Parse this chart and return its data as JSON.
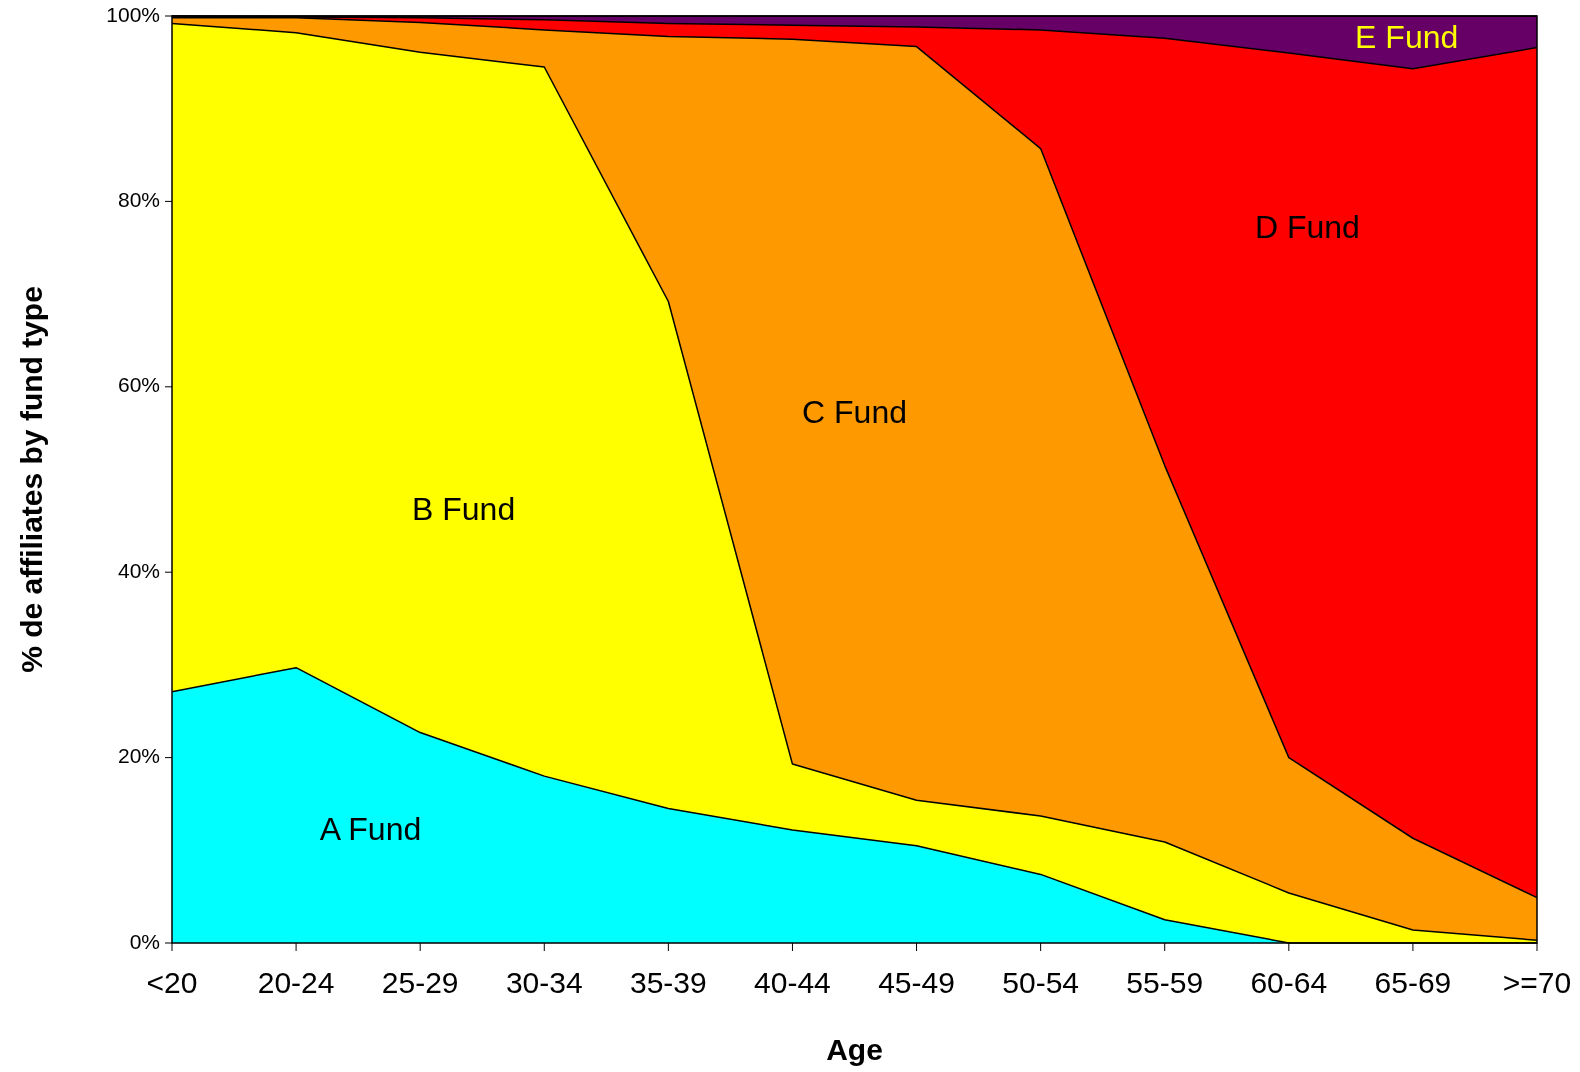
{
  "chart_data": {
    "type": "area",
    "stacked": true,
    "xlabel": "Age",
    "ylabel": "% de affiliates by fund type",
    "categories": [
      "<20",
      "20-24",
      "25-29",
      "30-34",
      "35-39",
      "40-44",
      "45-49",
      "50-54",
      "55-59",
      "60-64",
      "65-69",
      ">=70"
    ],
    "ylim": [
      0,
      100
    ],
    "yticks": [
      {
        "value": 0,
        "label": "0%"
      },
      {
        "value": 20,
        "label": "20%"
      },
      {
        "value": 40,
        "label": "40%"
      },
      {
        "value": 60,
        "label": "60%"
      },
      {
        "value": 80,
        "label": "80%"
      },
      {
        "value": 100,
        "label": "100%"
      }
    ],
    "grid": false,
    "series": [
      {
        "name": "A Fund",
        "color": "#00ffff",
        "values": [
          27.1,
          29.7,
          22.7,
          18.0,
          14.5,
          12.2,
          10.5,
          7.4,
          2.5,
          0,
          0,
          0
        ]
      },
      {
        "name": "B Fund",
        "color": "#ffff00",
        "values": [
          72.1,
          68.5,
          73.4,
          76.5,
          54.7,
          7.1,
          4.9,
          6.3,
          8.4,
          5.4,
          1.4,
          0.3
        ]
      },
      {
        "name": "C Fund",
        "color": "#ff9900",
        "values": [
          0.6,
          1.6,
          3.2,
          4.0,
          28.6,
          78.2,
          81.3,
          72.0,
          40.6,
          14.6,
          9.9,
          4.6
        ]
      },
      {
        "name": "D Fund",
        "color": "#ff0000",
        "values": [
          0.2,
          0.1,
          0.5,
          1.1,
          1.4,
          1.5,
          2.1,
          12.8,
          46.1,
          76.0,
          83.0,
          91.7
        ]
      },
      {
        "name": "E Fund",
        "color": "#660066",
        "values": [
          0,
          0.1,
          0.2,
          0.4,
          0.8,
          1.0,
          1.2,
          1.5,
          2.4,
          4.0,
          5.7,
          3.4
        ]
      }
    ]
  }
}
